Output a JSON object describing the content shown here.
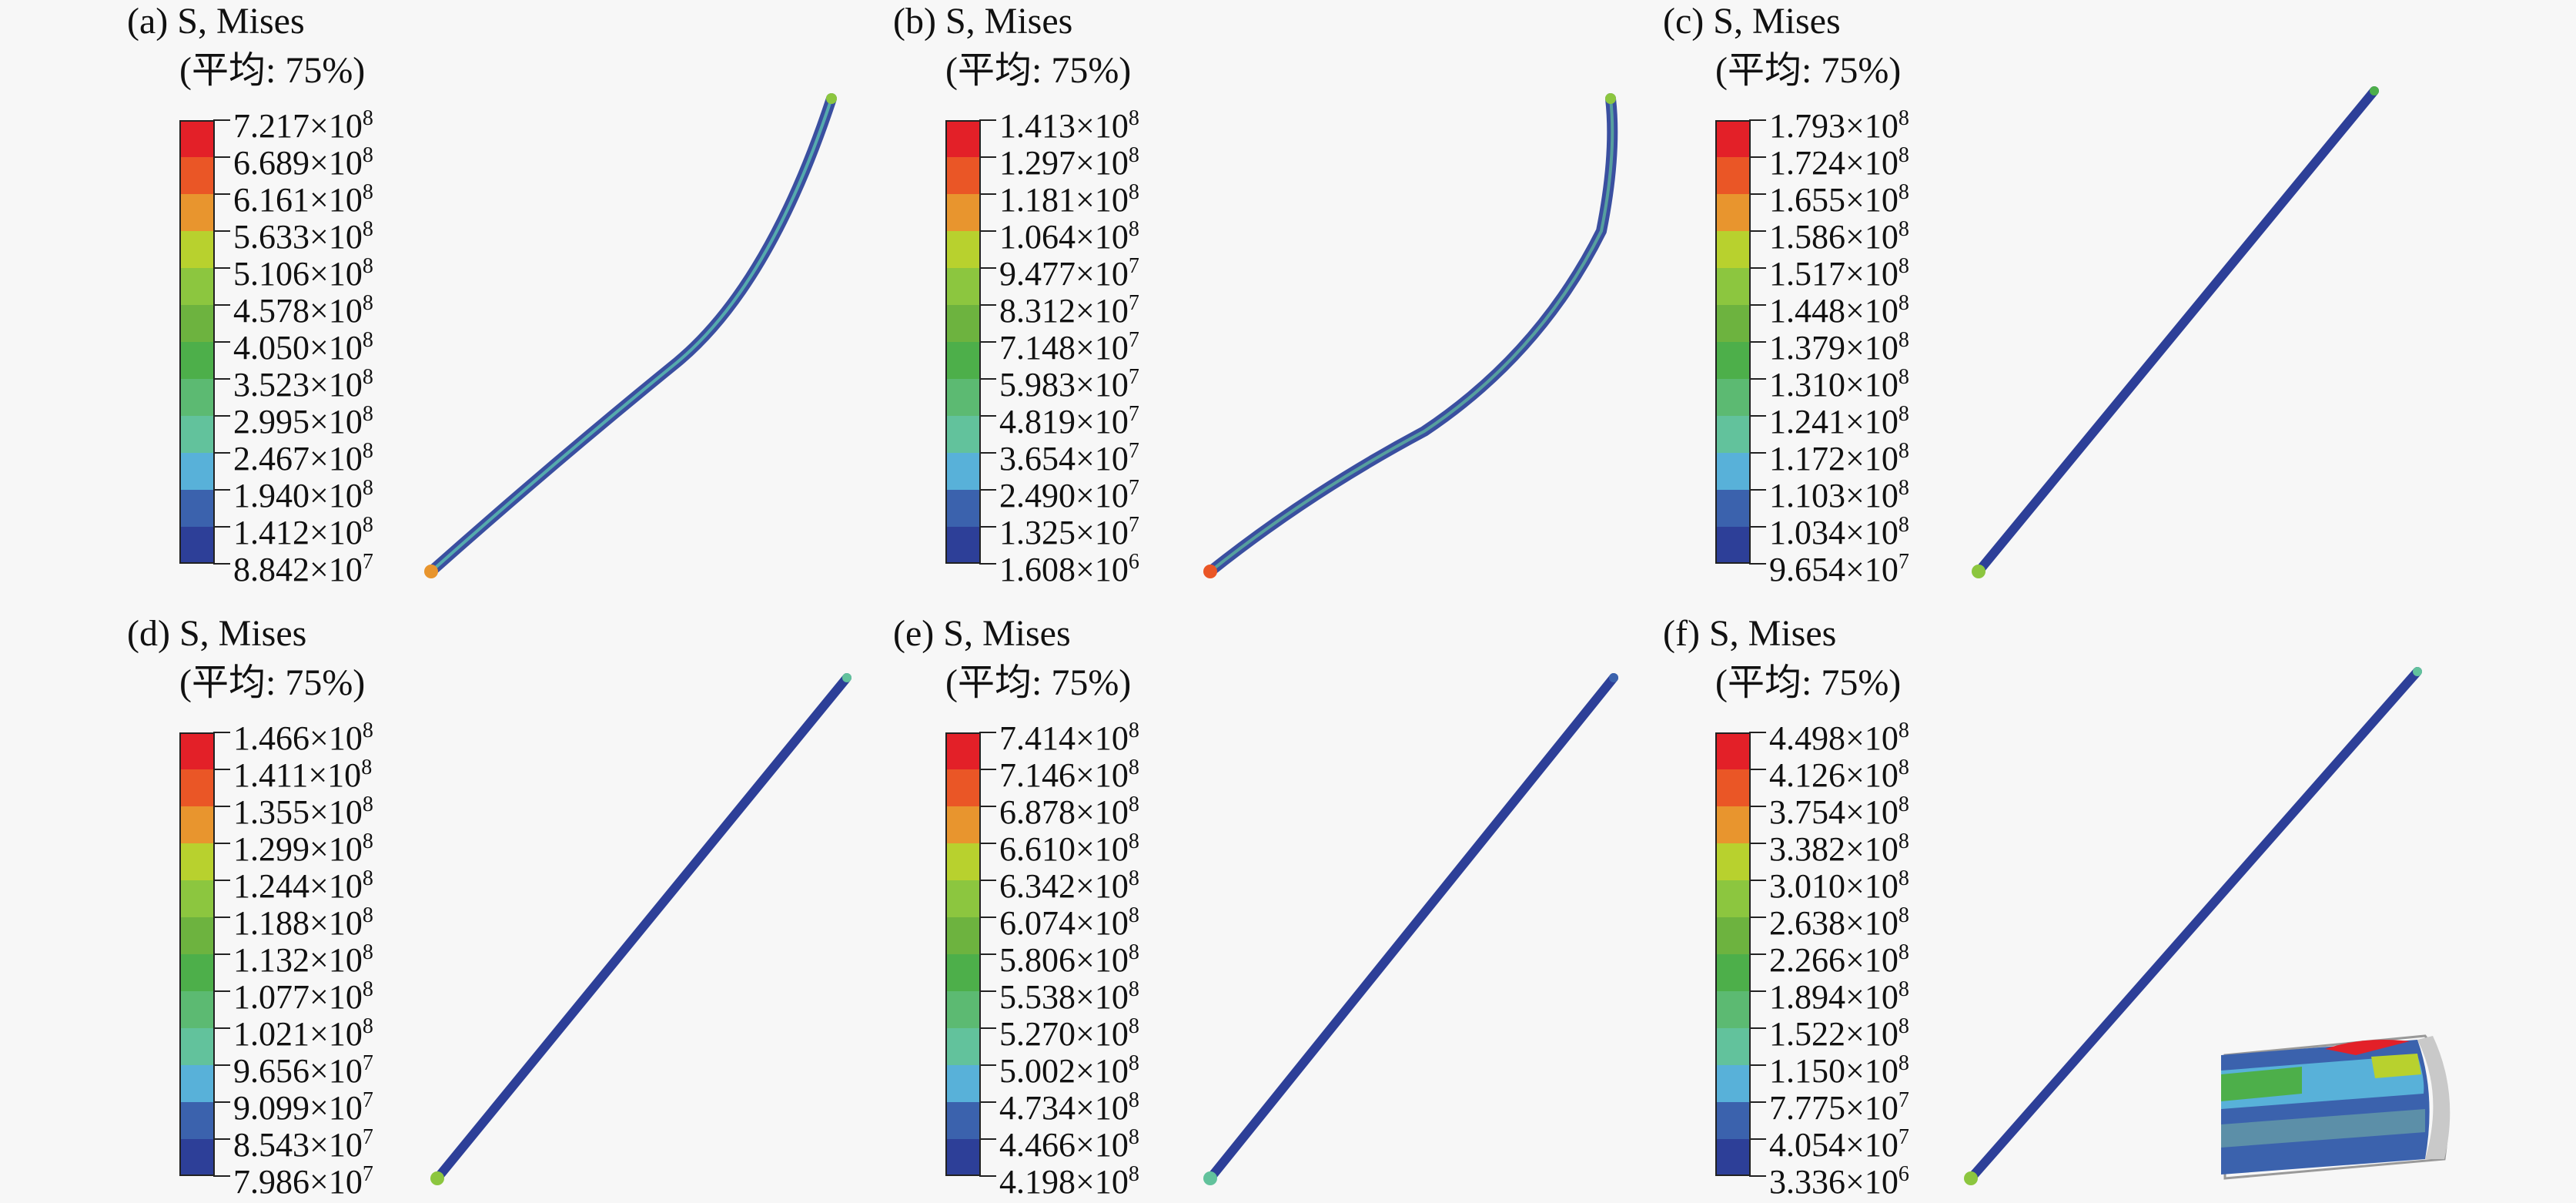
{
  "colors": [
    "#e32028",
    "#ea5626",
    "#e8952e",
    "#b8d12e",
    "#8cc63f",
    "#6db33f",
    "#4daf4a",
    "#5cba72",
    "#62c29c",
    "#58b1d9",
    "#3b62ad",
    "#2d3f98"
  ],
  "panels": [
    {
      "id": "a",
      "title": "(a) S, Mises",
      "subtitle": "(平均: 75%)",
      "labels": [
        [
          "7.217",
          "8"
        ],
        [
          "6.689",
          "8"
        ],
        [
          "6.161",
          "8"
        ],
        [
          "5.633",
          "8"
        ],
        [
          "5.106",
          "8"
        ],
        [
          "4.578",
          "8"
        ],
        [
          "4.050",
          "8"
        ],
        [
          "3.523",
          "8"
        ],
        [
          "2.995",
          "8"
        ],
        [
          "2.467",
          "8"
        ],
        [
          "1.940",
          "8"
        ],
        [
          "1.412",
          "8"
        ],
        [
          "8.842",
          "7"
        ]
      ]
    },
    {
      "id": "b",
      "title": "(b) S, Mises",
      "subtitle": "(平均: 75%)",
      "labels": [
        [
          "1.413",
          "8"
        ],
        [
          "1.297",
          "8"
        ],
        [
          "1.181",
          "8"
        ],
        [
          "1.064",
          "8"
        ],
        [
          "9.477",
          "7"
        ],
        [
          "8.312",
          "7"
        ],
        [
          "7.148",
          "7"
        ],
        [
          "5.983",
          "7"
        ],
        [
          "4.819",
          "7"
        ],
        [
          "3.654",
          "7"
        ],
        [
          "2.490",
          "7"
        ],
        [
          "1.325",
          "7"
        ],
        [
          "1.608",
          "6"
        ]
      ]
    },
    {
      "id": "c",
      "title": "(c) S, Mises",
      "subtitle": "(平均: 75%)",
      "labels": [
        [
          "1.793",
          "8"
        ],
        [
          "1.724",
          "8"
        ],
        [
          "1.655",
          "8"
        ],
        [
          "1.586",
          "8"
        ],
        [
          "1.517",
          "8"
        ],
        [
          "1.448",
          "8"
        ],
        [
          "1.379",
          "8"
        ],
        [
          "1.310",
          "8"
        ],
        [
          "1.241",
          "8"
        ],
        [
          "1.172",
          "8"
        ],
        [
          "1.103",
          "8"
        ],
        [
          "1.034",
          "8"
        ],
        [
          "9.654",
          "7"
        ]
      ]
    },
    {
      "id": "d",
      "title": "(d) S, Mises",
      "subtitle": "(平均: 75%)",
      "labels": [
        [
          "1.466",
          "8"
        ],
        [
          "1.411",
          "8"
        ],
        [
          "1.355",
          "8"
        ],
        [
          "1.299",
          "8"
        ],
        [
          "1.244",
          "8"
        ],
        [
          "1.188",
          "8"
        ],
        [
          "1.132",
          "8"
        ],
        [
          "1.077",
          "8"
        ],
        [
          "1.021",
          "8"
        ],
        [
          "9.656",
          "7"
        ],
        [
          "9.099",
          "7"
        ],
        [
          "8.543",
          "7"
        ],
        [
          "7.986",
          "7"
        ]
      ]
    },
    {
      "id": "e",
      "title": "(e) S, Mises",
      "subtitle": "(平均: 75%)",
      "labels": [
        [
          "7.414",
          "8"
        ],
        [
          "7.146",
          "8"
        ],
        [
          "6.878",
          "8"
        ],
        [
          "6.610",
          "8"
        ],
        [
          "6.342",
          "8"
        ],
        [
          "6.074",
          "8"
        ],
        [
          "5.806",
          "8"
        ],
        [
          "5.538",
          "8"
        ],
        [
          "5.270",
          "8"
        ],
        [
          "5.002",
          "8"
        ],
        [
          "4.734",
          "8"
        ],
        [
          "4.466",
          "8"
        ],
        [
          "4.198",
          "8"
        ]
      ]
    },
    {
      "id": "f",
      "title": "(f) S, Mises",
      "subtitle": "(平均: 75%)",
      "labels": [
        [
          "4.498",
          "8"
        ],
        [
          "4.126",
          "8"
        ],
        [
          "3.754",
          "8"
        ],
        [
          "3.382",
          "8"
        ],
        [
          "3.010",
          "8"
        ],
        [
          "2.638",
          "8"
        ],
        [
          "2.266",
          "8"
        ],
        [
          "1.894",
          "8"
        ],
        [
          "1.522",
          "8"
        ],
        [
          "1.150",
          "8"
        ],
        [
          "7.775",
          "7"
        ],
        [
          "4.054",
          "7"
        ],
        [
          "3.336",
          "6"
        ]
      ]
    }
  ]
}
